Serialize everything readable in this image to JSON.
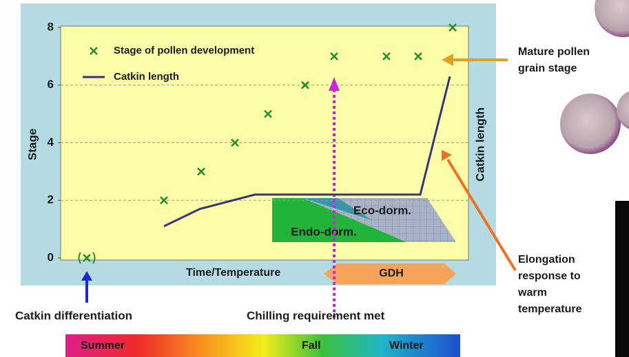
{
  "chart_data": {
    "type": "scatter",
    "ylabel": "Stage",
    "y2label": "Catkin length",
    "xlabel": "Time/Temperature",
    "ylim": [
      0,
      8
    ],
    "yticks": [
      0,
      2,
      4,
      6,
      8
    ],
    "y2lim": [
      0,
      8
    ],
    "grid": true,
    "legend": "upper left",
    "series": [
      {
        "name": "Stage of pollen development",
        "color": "#1f8f2a",
        "values": [
          0,
          2,
          3,
          4,
          5,
          6,
          7,
          7,
          7,
          8
        ]
      },
      {
        "name": "Catkin length",
        "type": "line",
        "axis": "y2",
        "color": "#35357a",
        "values": [
          1.1,
          1.7,
          2.2,
          2.2,
          6.3
        ]
      }
    ],
    "annotations": {
      "endo_dormancy": "Endo-dorm.",
      "eco_dormancy": "Eco-dorm.",
      "gdh": "GDH",
      "catkin_differentiation": "Catkin differentiation",
      "chilling_requirement": "Chilling requirement met",
      "mature_pollen": [
        "Mature pollen",
        "grain stage"
      ],
      "elongation": [
        "Elongation",
        "response to",
        "warm",
        "temperature"
      ],
      "seasons": [
        "Summer",
        "Fall",
        "Winter"
      ]
    }
  }
}
